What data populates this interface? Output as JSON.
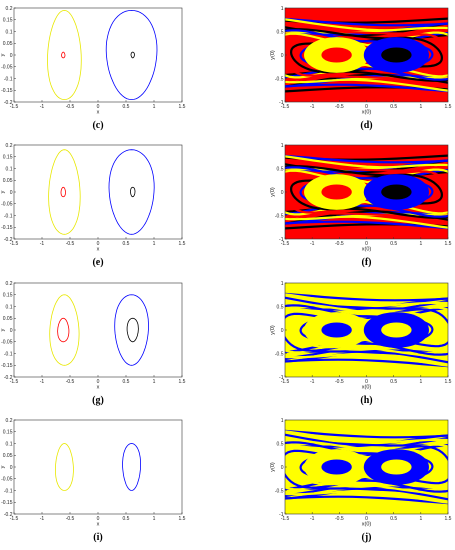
{
  "figure": {
    "panels": [
      {
        "id": "c",
        "label": "(c)",
        "kind": "orbit",
        "xlabel": "x",
        "ylabel": "y",
        "xlim": [
          -1.5,
          1.5
        ],
        "ylim": [
          -0.2,
          0.2
        ],
        "xticks": [
          "-1.5",
          "-1",
          "-0.5",
          "0",
          "0.5",
          "1",
          "1.5"
        ],
        "yticks": [
          "0.2",
          "0.15",
          "0.1",
          "0.05",
          "0",
          "-0.05",
          "-0.1",
          "-0.15",
          "-0.2"
        ],
        "series": [
          {
            "color": "#e8e800",
            "cx": -0.6,
            "cy": 0.0,
            "rx": 0.3,
            "ry": 0.19
          },
          {
            "color": "#0000ff",
            "cx": 0.6,
            "cy": 0.0,
            "rx": 0.45,
            "ry": 0.19
          },
          {
            "color": "#ff0000",
            "cx": -0.62,
            "cy": 0.0,
            "rx": 0.03,
            "ry": 0.012
          },
          {
            "color": "#000000",
            "cx": 0.62,
            "cy": 0.0,
            "rx": 0.03,
            "ry": 0.012
          }
        ]
      },
      {
        "id": "d",
        "label": "(d)",
        "kind": "basin",
        "xlabel": "x(0)",
        "ylabel": "y(0)",
        "xlim": [
          -1.5,
          1.5
        ],
        "ylim": [
          -1,
          1
        ],
        "xticks": [
          "-1.5",
          "-1",
          "-0.5",
          "0",
          "0.5",
          "1",
          "1.5"
        ],
        "yticks": [
          "1",
          "0.5",
          "0",
          "-0.5",
          "-1"
        ],
        "palette": [
          "#000000",
          "#ff0000",
          "#ffff00",
          "#0000ff"
        ],
        "background": "#ff0000"
      },
      {
        "id": "e",
        "label": "(e)",
        "kind": "orbit",
        "xlabel": "x",
        "ylabel": "y",
        "xlim": [
          -1.5,
          1.5
        ],
        "ylim": [
          -0.2,
          0.2
        ],
        "xticks": [
          "-1.5",
          "-1",
          "-0.5",
          "0",
          "0.5",
          "1",
          "1.5"
        ],
        "yticks": [
          "0.2",
          "0.15",
          "0.1",
          "0.05",
          "0",
          "-0.05",
          "-0.1",
          "-0.15",
          "-0.2"
        ],
        "series": [
          {
            "color": "#e8e800",
            "cx": -0.6,
            "cy": 0.0,
            "rx": 0.28,
            "ry": 0.18
          },
          {
            "color": "#0000ff",
            "cx": 0.6,
            "cy": 0.0,
            "rx": 0.4,
            "ry": 0.18
          },
          {
            "color": "#ff0000",
            "cx": -0.62,
            "cy": 0.0,
            "rx": 0.04,
            "ry": 0.02
          },
          {
            "color": "#000000",
            "cx": 0.62,
            "cy": 0.0,
            "rx": 0.04,
            "ry": 0.02
          }
        ]
      },
      {
        "id": "f",
        "label": "(f)",
        "kind": "basin",
        "xlabel": "x(0)",
        "ylabel": "y(0)",
        "xlim": [
          -1.5,
          1.5
        ],
        "ylim": [
          -1,
          1
        ],
        "xticks": [
          "-1.5",
          "-1",
          "-0.5",
          "0",
          "0.5",
          "1",
          "1.5"
        ],
        "yticks": [
          "1",
          "0.5",
          "0",
          "-0.5",
          "-1"
        ],
        "palette": [
          "#000000",
          "#ff0000",
          "#ffff00",
          "#0000ff"
        ],
        "background": "#ff0000"
      },
      {
        "id": "g",
        "label": "(g)",
        "kind": "orbit",
        "xlabel": "x",
        "ylabel": "y",
        "xlim": [
          -1.5,
          1.5
        ],
        "ylim": [
          -0.2,
          0.2
        ],
        "xticks": [
          "-1.5",
          "-1",
          "-0.5",
          "0",
          "0.5",
          "1",
          "1.5"
        ],
        "yticks": [
          "0.2",
          "0.15",
          "0.1",
          "0.05",
          "0",
          "-0.05",
          "-0.1",
          "-0.15",
          "-0.2"
        ],
        "series": [
          {
            "color": "#e8e800",
            "cx": -0.6,
            "cy": 0.0,
            "rx": 0.26,
            "ry": 0.15
          },
          {
            "color": "#0000ff",
            "cx": 0.6,
            "cy": 0.0,
            "rx": 0.3,
            "ry": 0.15
          },
          {
            "color": "#ff0000",
            "cx": -0.62,
            "cy": 0.0,
            "rx": 0.1,
            "ry": 0.05
          },
          {
            "color": "#000000",
            "cx": 0.62,
            "cy": 0.0,
            "rx": 0.1,
            "ry": 0.05
          }
        ]
      },
      {
        "id": "h",
        "label": "(h)",
        "kind": "basin",
        "xlabel": "x(0)",
        "ylabel": "y(0)",
        "xlim": [
          -1.5,
          1.5
        ],
        "ylim": [
          -1,
          1
        ],
        "xticks": [
          "-1.5",
          "-1",
          "-0.5",
          "0",
          "0.5",
          "1",
          "1.5"
        ],
        "yticks": [
          "1",
          "0.5",
          "0",
          "-0.5",
          "-1"
        ],
        "palette": [
          "#ffff00",
          "#0000ff",
          "#ffff00",
          "#0000ff"
        ],
        "background": "#ffff00"
      },
      {
        "id": "i",
        "label": "(i)",
        "kind": "orbit",
        "xlabel": "x",
        "ylabel": "y",
        "xlim": [
          -1.5,
          1.5
        ],
        "ylim": [
          -0.2,
          0.2
        ],
        "xticks": [
          "-1.5",
          "-1",
          "-0.5",
          "0",
          "0.5",
          "1",
          "1.5"
        ],
        "yticks": [
          "0.2",
          "0.15",
          "0.1",
          "0.05",
          "0",
          "-0.05",
          "-0.1",
          "-0.15",
          "-0.2"
        ],
        "series": [
          {
            "color": "#e8e800",
            "cx": -0.6,
            "cy": 0.0,
            "rx": 0.16,
            "ry": 0.1
          },
          {
            "color": "#0000ff",
            "cx": 0.6,
            "cy": 0.0,
            "rx": 0.16,
            "ry": 0.1
          }
        ]
      },
      {
        "id": "j",
        "label": "(j)",
        "kind": "basin",
        "xlabel": "x(0)",
        "ylabel": "y(0)",
        "xlim": [
          -1.5,
          1.5
        ],
        "ylim": [
          -1,
          1
        ],
        "xticks": [
          "-1.5",
          "-1",
          "-0.5",
          "0",
          "0.5",
          "1",
          "1.5"
        ],
        "yticks": [
          "1",
          "0.5",
          "0",
          "-0.5",
          "-1"
        ],
        "palette": [
          "#ffff00",
          "#0000ff",
          "#ffff00",
          "#0000ff"
        ],
        "background": "#ffff00"
      }
    ]
  },
  "chart_data": [
    {
      "type": "line",
      "panel": "(c)",
      "xlabel": "x",
      "ylabel": "y",
      "xlim": [
        -1.5,
        1.5
      ],
      "ylim": [
        -0.2,
        0.2
      ],
      "series": [
        {
          "color": "yellow",
          "shape": "closed orbit",
          "center": [
            -0.6,
            0.0
          ],
          "x_range": [
            -0.9,
            -0.3
          ],
          "y_range": [
            -0.19,
            0.19
          ]
        },
        {
          "color": "blue",
          "shape": "closed orbit",
          "center": [
            0.6,
            0.0
          ],
          "x_range": [
            0.15,
            1.05
          ],
          "y_range": [
            -0.19,
            0.19
          ]
        },
        {
          "color": "red",
          "shape": "closed orbit",
          "center": [
            -0.62,
            0.0
          ],
          "x_range": [
            -0.65,
            -0.59
          ],
          "y_range": [
            -0.012,
            0.012
          ]
        },
        {
          "color": "black",
          "shape": "closed orbit",
          "center": [
            0.62,
            0.0
          ],
          "x_range": [
            0.59,
            0.65
          ],
          "y_range": [
            -0.012,
            0.012
          ]
        }
      ]
    },
    {
      "type": "heatmap",
      "panel": "(d)",
      "xlabel": "x(0)",
      "ylabel": "y(0)",
      "xlim": [
        -1.5,
        1.5
      ],
      "ylim": [
        -1,
        1
      ],
      "categories": [
        "black",
        "red",
        "yellow",
        "blue"
      ]
    },
    {
      "type": "line",
      "panel": "(e)",
      "xlabel": "x",
      "ylabel": "y",
      "xlim": [
        -1.5,
        1.5
      ],
      "ylim": [
        -0.2,
        0.2
      ],
      "series": [
        {
          "color": "yellow",
          "shape": "closed orbit",
          "center": [
            -0.6,
            0.0
          ],
          "x_range": [
            -0.88,
            -0.32
          ],
          "y_range": [
            -0.18,
            0.18
          ]
        },
        {
          "color": "blue",
          "shape": "closed orbit",
          "center": [
            0.6,
            0.0
          ],
          "x_range": [
            0.2,
            1.0
          ],
          "y_range": [
            -0.18,
            0.18
          ]
        },
        {
          "color": "red",
          "shape": "closed orbit",
          "center": [
            -0.62,
            0.0
          ],
          "x_range": [
            -0.66,
            -0.58
          ],
          "y_range": [
            -0.02,
            0.02
          ]
        },
        {
          "color": "black",
          "shape": "closed orbit",
          "center": [
            0.62,
            0.0
          ],
          "x_range": [
            0.58,
            0.66
          ],
          "y_range": [
            -0.02,
            0.02
          ]
        }
      ]
    },
    {
      "type": "heatmap",
      "panel": "(f)",
      "xlabel": "x(0)",
      "ylabel": "y(0)",
      "xlim": [
        -1.5,
        1.5
      ],
      "ylim": [
        -1,
        1
      ],
      "categories": [
        "black",
        "red",
        "yellow",
        "blue"
      ]
    },
    {
      "type": "line",
      "panel": "(g)",
      "xlabel": "x",
      "ylabel": "y",
      "xlim": [
        -1.5,
        1.5
      ],
      "ylim": [
        -0.2,
        0.2
      ],
      "series": [
        {
          "color": "yellow",
          "shape": "closed orbit",
          "center": [
            -0.6,
            0.0
          ],
          "x_range": [
            -0.86,
            -0.34
          ],
          "y_range": [
            -0.15,
            0.15
          ]
        },
        {
          "color": "blue",
          "shape": "closed orbit",
          "center": [
            0.6,
            0.0
          ],
          "x_range": [
            0.3,
            0.9
          ],
          "y_range": [
            -0.15,
            0.15
          ]
        },
        {
          "color": "red",
          "shape": "closed orbit",
          "center": [
            -0.62,
            0.0
          ],
          "x_range": [
            -0.72,
            -0.52
          ],
          "y_range": [
            -0.05,
            0.05
          ]
        },
        {
          "color": "black",
          "shape": "closed orbit",
          "center": [
            0.62,
            0.0
          ],
          "x_range": [
            0.52,
            0.72
          ],
          "y_range": [
            -0.05,
            0.05
          ]
        }
      ]
    },
    {
      "type": "heatmap",
      "panel": "(h)",
      "xlabel": "x(0)",
      "ylabel": "y(0)",
      "xlim": [
        -1.5,
        1.5
      ],
      "ylim": [
        -1,
        1
      ],
      "categories": [
        "yellow",
        "blue",
        "red",
        "black"
      ]
    },
    {
      "type": "line",
      "panel": "(i)",
      "xlabel": "x",
      "ylabel": "y",
      "xlim": [
        -1.5,
        1.5
      ],
      "ylim": [
        -0.2,
        0.2
      ],
      "series": [
        {
          "color": "yellow",
          "shape": "closed orbit",
          "center": [
            -0.6,
            0.0
          ],
          "x_range": [
            -0.76,
            -0.44
          ],
          "y_range": [
            -0.1,
            0.1
          ]
        },
        {
          "color": "blue",
          "shape": "closed orbit",
          "center": [
            0.6,
            0.0
          ],
          "x_range": [
            0.44,
            0.76
          ],
          "y_range": [
            -0.1,
            0.1
          ]
        }
      ]
    },
    {
      "type": "heatmap",
      "panel": "(j)",
      "xlabel": "x(0)",
      "ylabel": "y(0)",
      "xlim": [
        -1.5,
        1.5
      ],
      "ylim": [
        -1,
        1
      ],
      "categories": [
        "yellow",
        "blue"
      ]
    }
  ]
}
